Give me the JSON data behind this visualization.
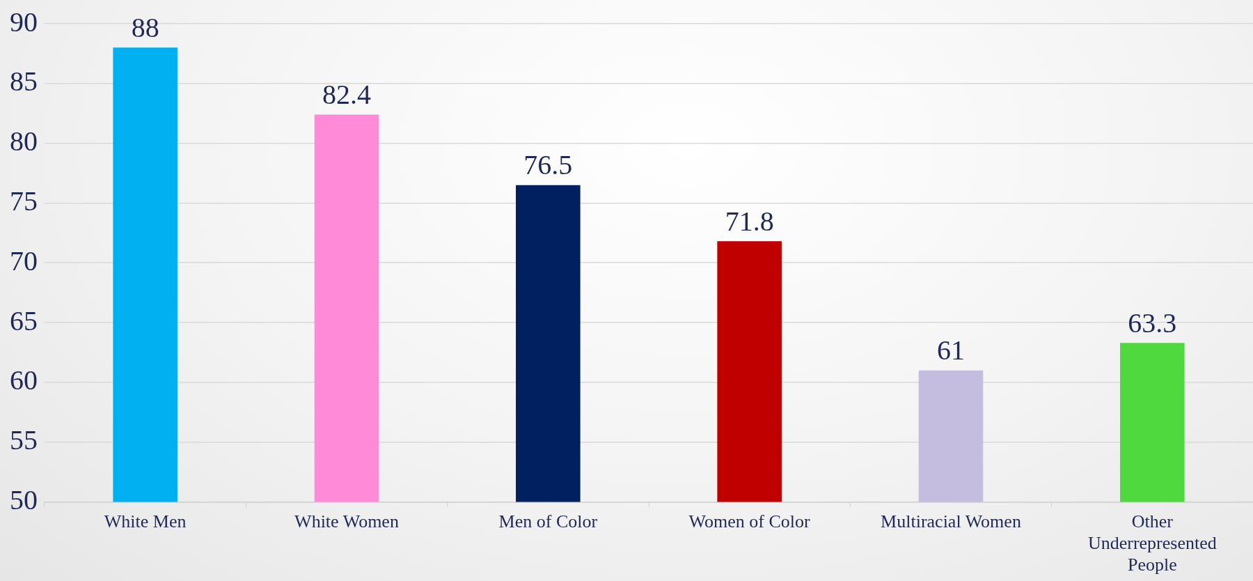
{
  "chart_data": {
    "type": "bar",
    "categories": [
      "White Men",
      "White Women",
      "Men of Color",
      "Women of Color",
      "Multiracial Women",
      "Other Underrepresented People"
    ],
    "values": [
      88,
      82.4,
      76.5,
      71.8,
      61,
      63.3
    ],
    "colors": [
      "#00b0f0",
      "#ff8ad8",
      "#002060",
      "#c00000",
      "#c5bde0",
      "#4fd93f"
    ],
    "ylim": [
      50,
      90
    ],
    "yticks": [
      50,
      55,
      60,
      65,
      70,
      75,
      80,
      85,
      90
    ],
    "grid": "y",
    "data_labels": true,
    "legend": false
  }
}
